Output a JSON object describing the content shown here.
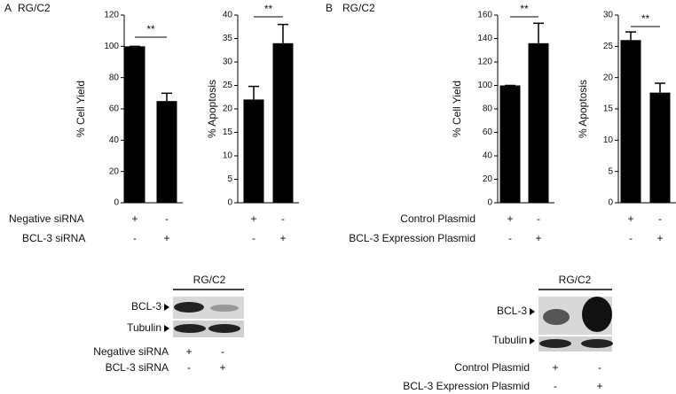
{
  "figure": {
    "panels": [
      {
        "letter": "A",
        "title": "RG/C2",
        "conditions": [
          {
            "label": "Negative siRNA",
            "signs": [
              "+",
              "-"
            ]
          },
          {
            "label": "BCL-3 siRNA",
            "signs": [
              "-",
              "+"
            ]
          }
        ],
        "blot": {
          "title": "RG/C2",
          "bands": [
            "BCL-3",
            "Tubulin"
          ],
          "conditions": [
            {
              "label": "Negative siRNA",
              "signs": [
                "+",
                "-"
              ]
            },
            {
              "label": "BCL-3 siRNA",
              "signs": [
                "-",
                "+"
              ]
            }
          ]
        }
      },
      {
        "letter": "B",
        "title": "RG/C2",
        "conditions": [
          {
            "label": "Control Plasmid",
            "signs": [
              "+",
              "-"
            ]
          },
          {
            "label": "BCL-3 Expression Plasmid",
            "signs": [
              "-",
              "+"
            ]
          }
        ],
        "blot": {
          "title": "RG/C2",
          "bands": [
            "BCL-3",
            "Tubulin"
          ],
          "conditions": [
            {
              "label": "Control Plasmid",
              "signs": [
                "+",
                "-"
              ]
            },
            {
              "label": "BCL-3 Expression Plasmid",
              "signs": [
                "-",
                "+"
              ]
            }
          ]
        }
      }
    ]
  },
  "chart_data": [
    {
      "type": "bar",
      "ylabel": "% Cell Yield",
      "values": [
        100,
        65
      ],
      "errors": [
        0,
        5
      ],
      "color": "#000000",
      "ylim": [
        0,
        120
      ],
      "yticks": [
        0,
        20,
        40,
        60,
        80,
        100,
        120
      ],
      "annotation": "**"
    },
    {
      "type": "bar",
      "ylabel": "% Apoptosis",
      "values": [
        22,
        34
      ],
      "errors": [
        2.8,
        4
      ],
      "color": "#000000",
      "ylim": [
        0,
        40
      ],
      "yticks": [
        0,
        5,
        10,
        15,
        20,
        25,
        30,
        35,
        40
      ],
      "annotation": "**"
    },
    {
      "type": "bar",
      "ylabel": "% Cell Yield",
      "values": [
        100,
        136
      ],
      "errors": [
        0,
        17
      ],
      "color": "#000000",
      "ylim": [
        0,
        160
      ],
      "yticks": [
        0,
        20,
        40,
        60,
        80,
        100,
        120,
        140,
        160
      ],
      "annotation": "**"
    },
    {
      "type": "bar",
      "ylabel": "% Apoptosis",
      "values": [
        26,
        17.6
      ],
      "errors": [
        1.3,
        1.5
      ],
      "color": "#000000",
      "ylim": [
        0,
        30
      ],
      "yticks": [
        0,
        5,
        10,
        15,
        20,
        25,
        30
      ],
      "annotation": "**"
    }
  ]
}
